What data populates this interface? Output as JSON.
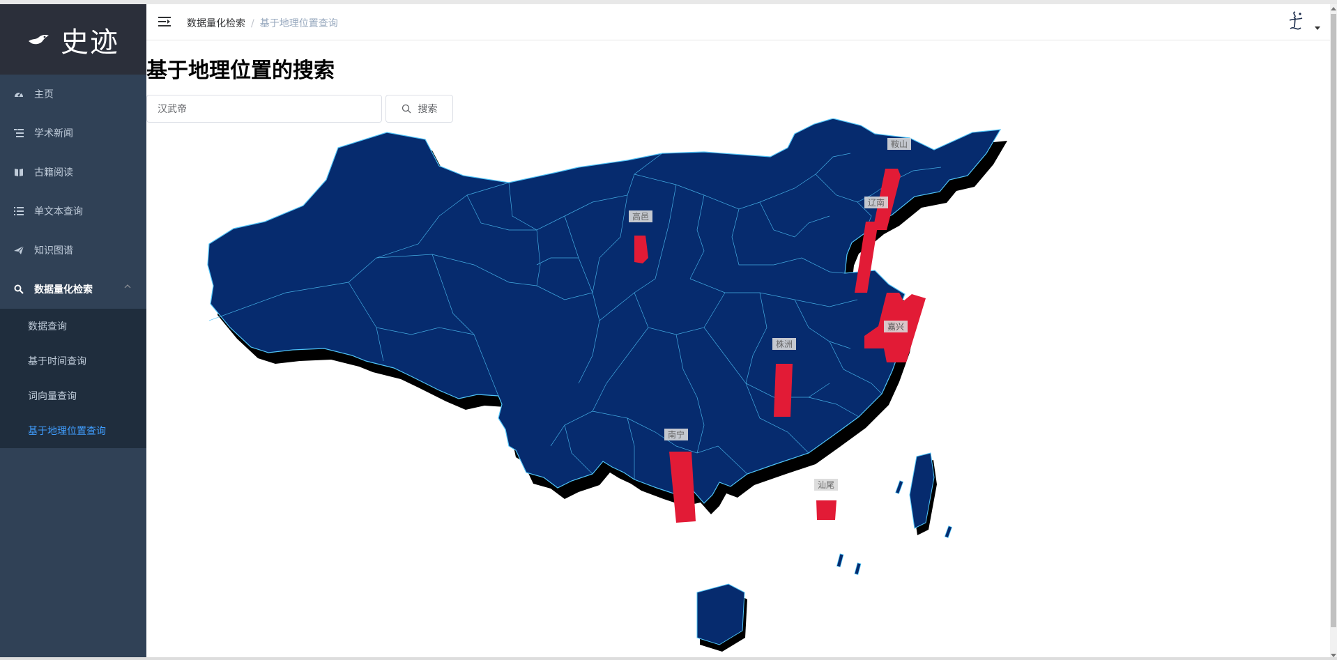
{
  "app": {
    "logo_text": "史迹"
  },
  "sidebar": {
    "items": [
      {
        "label": "主页",
        "icon": "dashboard-icon"
      },
      {
        "label": "学术新闻",
        "icon": "list-tree-icon"
      },
      {
        "label": "古籍阅读",
        "icon": "book-icon"
      },
      {
        "label": "单文本查询",
        "icon": "list-icon"
      },
      {
        "label": "知识图谱",
        "icon": "paper-plane-icon"
      },
      {
        "label": "数据量化检索",
        "icon": "search-icon",
        "expanded": true
      }
    ],
    "subitems": [
      {
        "label": "数据查询"
      },
      {
        "label": "基于时间查询"
      },
      {
        "label": "词向量查询"
      },
      {
        "label": "基于地理位置查询",
        "active": true
      }
    ]
  },
  "breadcrumb": {
    "parent": "数据量化检索",
    "current": "基于地理位置查询"
  },
  "page": {
    "title": "基于地理位置的搜索"
  },
  "search": {
    "value": "汉武帝",
    "button_label": "搜索"
  },
  "map": {
    "region": "China",
    "land_color": "#062b6e",
    "border_color": "#4fc3f7",
    "shadow_color": "#000000",
    "bar_color": "#e21b36",
    "labels": [
      "鞍山",
      "辽南",
      "高邑",
      "嘉兴",
      "株洲",
      "南宁",
      "汕尾"
    ]
  },
  "colors": {
    "sidebar_bg": "#304156",
    "active": "#409eff"
  }
}
